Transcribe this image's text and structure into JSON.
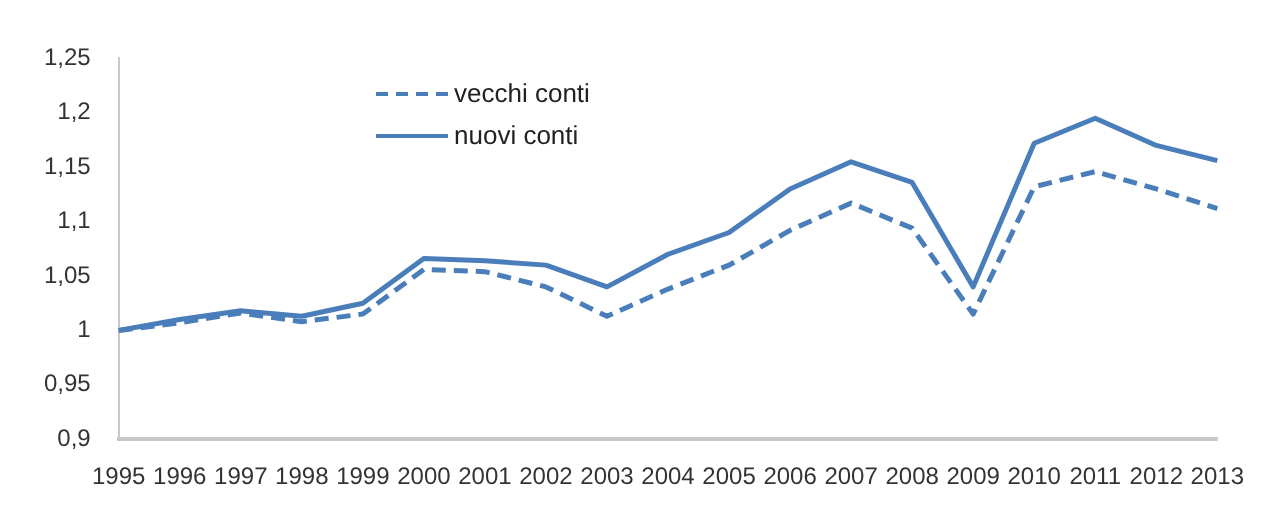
{
  "chart_data": {
    "type": "line",
    "categories": [
      "1995",
      "1996",
      "1997",
      "1998",
      "1999",
      "2000",
      "2001",
      "2002",
      "2003",
      "2004",
      "2005",
      "2006",
      "2007",
      "2008",
      "2009",
      "2010",
      "2011",
      "2012",
      "2013"
    ],
    "series": [
      {
        "name": "vecchi conti",
        "color": "#4a7ebb",
        "line_style": "dashed",
        "values": [
          1.0,
          1.007,
          1.016,
          1.008,
          1.015,
          1.056,
          1.054,
          1.04,
          1.013,
          1.038,
          1.06,
          1.092,
          1.117,
          1.094,
          1.015,
          1.132,
          1.146,
          1.13,
          1.112
        ]
      },
      {
        "name": "nuovi conti",
        "color": "#4a7ebb",
        "line_style": "solid",
        "values": [
          1.0,
          1.01,
          1.018,
          1.013,
          1.025,
          1.066,
          1.064,
          1.06,
          1.04,
          1.07,
          1.09,
          1.13,
          1.155,
          1.136,
          1.04,
          1.172,
          1.195,
          1.17,
          1.156
        ]
      }
    ],
    "ylim": [
      0.9,
      1.25
    ],
    "yticks": [
      {
        "value": 0.9,
        "label": "0,9"
      },
      {
        "value": 0.95,
        "label": "0,95"
      },
      {
        "value": 1,
        "label": "1"
      },
      {
        "value": 1.05,
        "label": "1,05"
      },
      {
        "value": 1.1,
        "label": "1,1"
      },
      {
        "value": 1.15,
        "label": "1,15"
      },
      {
        "value": 1.2,
        "label": "1,2"
      },
      {
        "value": 1.25,
        "label": "1,25"
      }
    ],
    "grid": false,
    "legend": "top left",
    "marker": "none"
  }
}
